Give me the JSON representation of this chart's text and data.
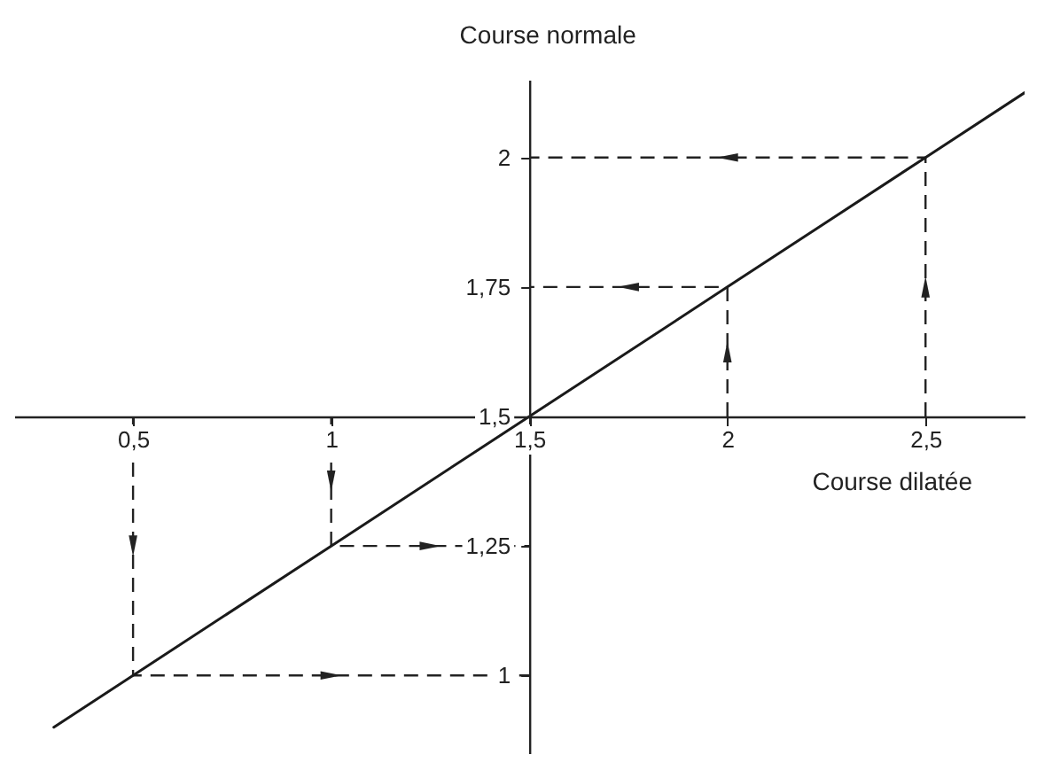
{
  "chart_data": {
    "type": "line",
    "xlabel": "Course dilatée",
    "ylabel": "Course normale",
    "x": [
      0.3,
      0.5,
      1,
      1.5,
      2,
      2.5,
      2.75
    ],
    "series": [
      {
        "color": "#1a1a1a",
        "values": [
          0.9,
          1,
          1.25,
          1.5,
          1.75,
          2,
          2.125
        ]
      }
    ],
    "xlim": [
      0.2,
      2.75
    ],
    "ylim": [
      0.85,
      2.15
    ],
    "xticks": [
      {
        "value": 0.5,
        "label": "0,5"
      },
      1,
      {
        "value": 1.5,
        "label": "1,5"
      },
      2,
      {
        "value": 2.5,
        "label": "2,5"
      }
    ],
    "yticks": [
      1,
      {
        "value": 1.25,
        "label": "1,25"
      },
      {
        "value": 1.5,
        "label": "1,5"
      },
      {
        "value": 1.75,
        "label": "1,75"
      },
      2
    ],
    "grid": false,
    "legend": false,
    "marker": "none",
    "line_style": "solid"
  }
}
